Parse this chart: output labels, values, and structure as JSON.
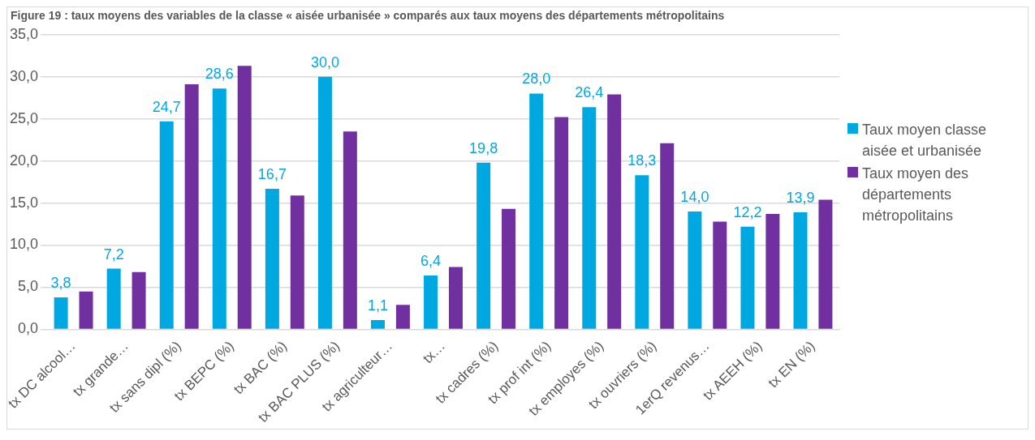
{
  "chart_data": {
    "type": "bar",
    "title": "Figure 19 : taux moyens des variables de la classe « aisée urbanisée » comparés aux taux moyens des départements métropolitains",
    "categories": [
      "tx DC alcool…",
      "tx grande…",
      "tx sans dipl (%)",
      "tx BEPC (%)",
      "tx BAC (%)",
      "tx BAC PLUS (%)",
      "tx agriculteur…",
      "tx…",
      "tx cadres (%)",
      "tx prof int (%)",
      "tx employes (%)",
      "tx ouvriers (%)",
      "1erQ revenus…",
      "tx AEEH (%)",
      "tx EN (%)"
    ],
    "series": [
      {
        "name": "Taux moyen classe aisée et urbanisée",
        "color": "#00a8e2",
        "values": [
          3.8,
          7.2,
          24.7,
          28.6,
          16.7,
          30.0,
          1.1,
          6.4,
          19.8,
          28.0,
          26.4,
          18.3,
          14.0,
          12.2,
          13.9
        ],
        "value_labels": [
          "3,8",
          "7,2",
          "24,7",
          "28,6",
          "16,7",
          "30,0",
          "1,1",
          "6,4",
          "19,8",
          "28,0",
          "26,4",
          "18,3",
          "14,0",
          "12,2",
          "13,9"
        ]
      },
      {
        "name": "Taux moyen des départements métropolitains",
        "color": "#7030a0",
        "values": [
          4.5,
          6.8,
          29.1,
          31.3,
          15.9,
          23.5,
          2.9,
          7.4,
          14.3,
          25.2,
          27.9,
          22.1,
          12.8,
          13.7,
          15.4
        ]
      }
    ],
    "ylim": [
      0,
      35
    ],
    "yticks": [
      {
        "value": 0,
        "label": "0,0"
      },
      {
        "value": 5,
        "label": "5,0"
      },
      {
        "value": 10,
        "label": "10,0"
      },
      {
        "value": 15,
        "label": "15,0"
      },
      {
        "value": 20,
        "label": "20,0"
      },
      {
        "value": 25,
        "label": "25,0"
      },
      {
        "value": 30,
        "label": "30,0"
      },
      {
        "value": 35,
        "label": "35,0"
      }
    ],
    "grid": "y",
    "legend": "right"
  }
}
